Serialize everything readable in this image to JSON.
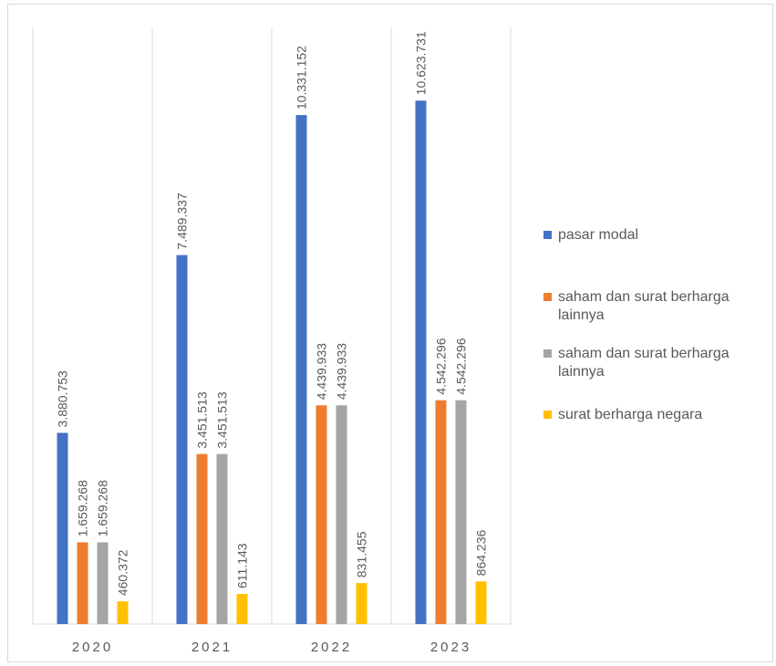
{
  "chart_data": {
    "type": "bar",
    "categories": [
      "2020",
      "2021",
      "2022",
      "2023"
    ],
    "series": [
      {
        "name": "pasar modal",
        "color": "#4472C4",
        "values": [
          3880753,
          7489337,
          10331152,
          10623731
        ],
        "labels": [
          "3.880.753",
          "7.489.337",
          "10.331.152",
          "10.623.731"
        ]
      },
      {
        "name": "saham dan surat berharga lainnya",
        "color": "#ED7D31",
        "values": [
          1659268,
          3451513,
          4439933,
          4542296
        ],
        "labels": [
          "1.659.268",
          "3.451.513",
          "4.439.933",
          "4.542.296"
        ]
      },
      {
        "name": "saham dan surat berharga lainnya",
        "color": "#A5A5A5",
        "values": [
          1659268,
          3451513,
          4439933,
          4542296
        ],
        "labels": [
          "1.659.268",
          "3.451.513",
          "4.439.933",
          "4.542.296"
        ]
      },
      {
        "name": "surat berharga negara",
        "color": "#FFC000",
        "values": [
          460372,
          611143,
          831455,
          864236
        ],
        "labels": [
          "460.372",
          "611.143",
          "831.455",
          "864.236"
        ]
      }
    ],
    "title": "",
    "xlabel": "",
    "ylabel": "",
    "ylim": [
      0,
      12000000
    ],
    "grid": "vertical category separators",
    "legend_position": "right",
    "data_labels": "rotated vertical above bars"
  }
}
